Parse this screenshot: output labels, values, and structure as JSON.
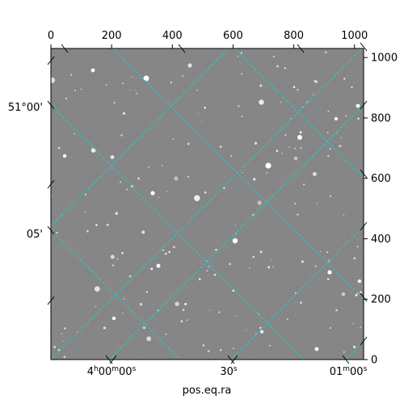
{
  "chart_data": {
    "type": "image",
    "image_description": "astronomical grayscale sky image with a dashed cyan WCS coordinate grid",
    "pixel_axes": {
      "x_range": [
        0,
        1030
      ],
      "y_range": [
        0,
        1030
      ],
      "top_ticks": [
        0,
        200,
        400,
        600,
        800,
        1000
      ],
      "right_ticks": [
        0,
        200,
        400,
        600,
        800,
        1000
      ]
    },
    "world_axes": {
      "bottom": {
        "label": "pos.eq.ra",
        "ticks": [
          "4h00m00s",
          "30s",
          "01m00s"
        ]
      },
      "left": {
        "label": "",
        "ticks": [
          "51°00'",
          "05'"
        ]
      }
    },
    "grid": {
      "on": true,
      "style": "dashed",
      "color": "#1ad0d0"
    },
    "colors": {
      "background": "#808080",
      "frame": "#000000"
    }
  }
}
